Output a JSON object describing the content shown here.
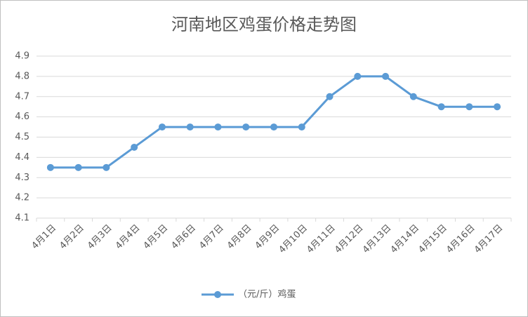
{
  "chart_data": {
    "type": "line",
    "title": "河南地区鸡蛋价格走势图",
    "categories": [
      "4月1日",
      "4月2日",
      "4月3日",
      "4月4日",
      "4月5日",
      "4月6日",
      "4月7日",
      "4月8日",
      "4月9日",
      "4月10日",
      "4月11日",
      "4月12日",
      "4月13日",
      "4月14日",
      "4月15日",
      "4月16日",
      "4月17日"
    ],
    "series": [
      {
        "name": "（元/斤）鸡蛋",
        "color": "#5b9bd5",
        "values": [
          4.35,
          4.35,
          4.35,
          4.45,
          4.55,
          4.55,
          4.55,
          4.55,
          4.55,
          4.55,
          4.7,
          4.8,
          4.8,
          4.7,
          4.65,
          4.65,
          4.65
        ]
      }
    ],
    "ylim": [
      4.1,
      4.9
    ],
    "yticks": [
      4.1,
      4.2,
      4.3,
      4.4,
      4.5,
      4.6,
      4.7,
      4.8,
      4.9
    ],
    "grid": true,
    "legend": "bottom"
  }
}
